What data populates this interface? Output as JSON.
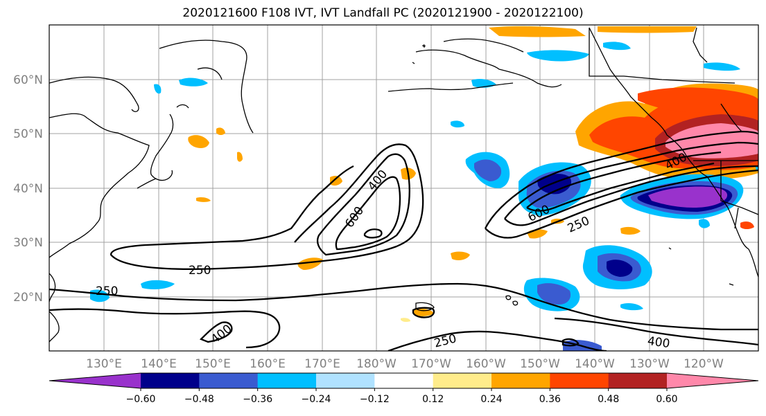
{
  "title": "2020121600 F108 IVT, IVT Landfall PC (2020121900 - 2020122100)",
  "lat_labels": [
    "60°N",
    "50°N",
    "40°N",
    "30°N",
    "20°N"
  ],
  "lon_labels": [
    "130°E",
    "140°E",
    "150°E",
    "160°E",
    "170°E",
    "180°W",
    "170°W",
    "160°W",
    "150°W",
    "140°W",
    "130°W",
    "120°W"
  ],
  "contour_labels": [
    "250",
    "250",
    "250",
    "250",
    "400",
    "400",
    "400",
    "400",
    "600",
    "600"
  ],
  "colorbar": {
    "ticks": [
      "−0.60",
      "−0.48",
      "−0.36",
      "−0.24",
      "−0.12",
      "0.12",
      "0.24",
      "0.36",
      "0.48",
      "0.60"
    ],
    "colors": [
      "#9932cc",
      "#00008b",
      "#3a5bd0",
      "#00bfff",
      "#b0e2ff",
      "#ffffff",
      "#ffec8b",
      "#ffa500",
      "#ff4500",
      "#b22222",
      "#ff88aa"
    ]
  },
  "colors": {
    "contour": "#000000",
    "grid": "#a0a0a0",
    "coast": "#000000"
  }
}
